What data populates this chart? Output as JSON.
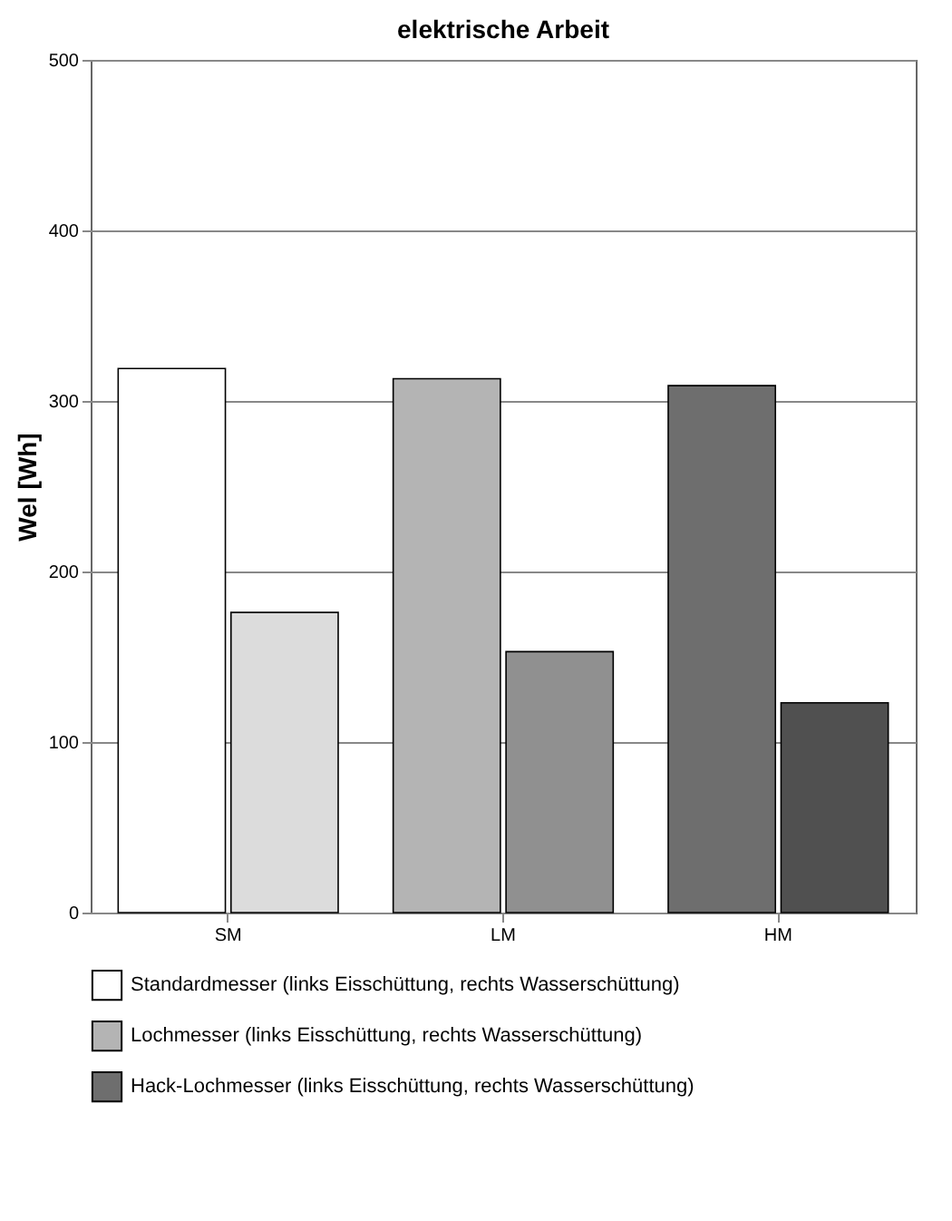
{
  "chart_data": {
    "type": "bar",
    "title": "elektrische Arbeit",
    "ylabel": "Wel [Wh]",
    "categories": [
      "SM",
      "LM",
      "HM"
    ],
    "series": [
      {
        "name": "Standardmesser (links Eisschüttung, rechts Wasserschüttung)",
        "color": "#ffffff",
        "values": [
          319,
          null,
          null
        ]
      },
      {
        "color": "#dcdcdc",
        "values": [
          176,
          null,
          null
        ]
      },
      {
        "name": "Lochmesser (links Eisschüttung, rechts Wasserschüttung)",
        "color": "#b4b4b4",
        "values": [
          null,
          313,
          null
        ]
      },
      {
        "color": "#909090",
        "values": [
          null,
          153,
          null
        ]
      },
      {
        "name": "Hack-Lochmesser (links Eisschüttung, rechts Wasserschüttung)",
        "color": "#6e6e6e",
        "values": [
          null,
          null,
          309
        ]
      },
      {
        "color": "#505050",
        "values": [
          null,
          null,
          123
        ]
      }
    ],
    "ylim": [
      0,
      500
    ],
    "yticks": [
      0,
      100,
      200,
      300,
      400,
      500
    ],
    "grid": "y",
    "legend": "bottom"
  }
}
